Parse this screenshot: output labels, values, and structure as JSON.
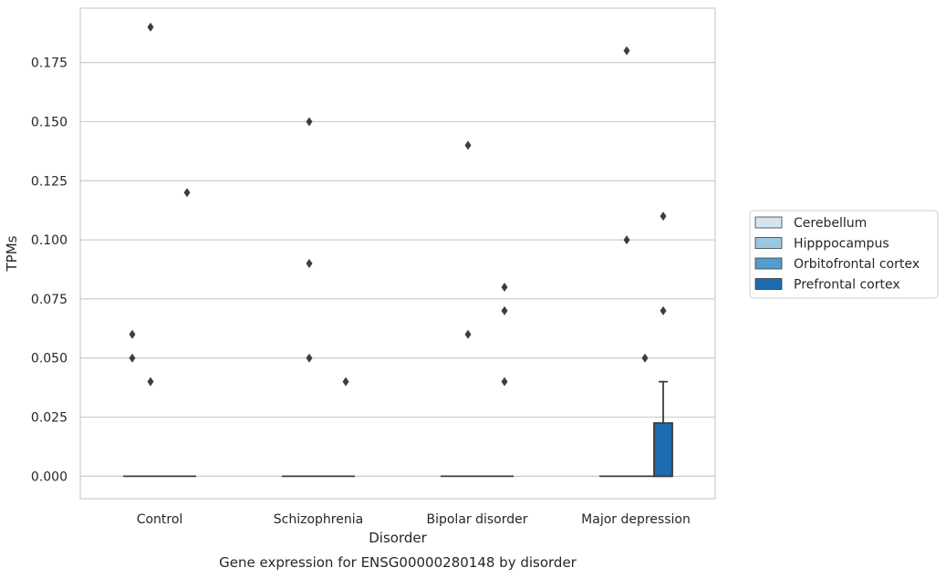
{
  "chart_data": {
    "type": "boxplot",
    "title": "Gene expression for ENSG00000280148 by disorder",
    "xlabel": "Disorder",
    "ylabel": "TPMs",
    "ylim": [
      -0.0095,
      0.198
    ],
    "yticks": [
      0.0,
      0.025,
      0.05,
      0.075,
      0.1,
      0.125,
      0.15,
      0.175
    ],
    "ytick_labels": [
      "0.000",
      "0.025",
      "0.050",
      "0.075",
      "0.100",
      "0.125",
      "0.150",
      "0.175"
    ],
    "grid": "horizontal",
    "legend_placement": "right-center",
    "categories": [
      "Control",
      "Schizophrenia",
      "Bipolar disorder",
      "Major depression"
    ],
    "series": [
      {
        "name": "Cerebellum",
        "color": "#d3e4f3",
        "boxes": [
          {
            "q1": 0,
            "median": 0,
            "q3": 0,
            "whisker_low": 0,
            "whisker_high": 0,
            "outliers": [
              0.06,
              0.05
            ]
          },
          {
            "q1": 0,
            "median": 0,
            "q3": 0,
            "whisker_low": 0,
            "whisker_high": 0,
            "outliers": []
          },
          {
            "q1": 0,
            "median": 0,
            "q3": 0,
            "whisker_low": 0,
            "whisker_high": 0,
            "outliers": []
          },
          {
            "q1": 0,
            "median": 0,
            "q3": 0,
            "whisker_low": 0,
            "whisker_high": 0,
            "outliers": []
          }
        ]
      },
      {
        "name": "Hipppocampus",
        "color": "#9ac8e0",
        "boxes": [
          {
            "q1": 0,
            "median": 0,
            "q3": 0,
            "whisker_low": 0,
            "whisker_high": 0,
            "outliers": [
              0.19,
              0.04
            ]
          },
          {
            "q1": 0,
            "median": 0,
            "q3": 0,
            "whisker_low": 0,
            "whisker_high": 0,
            "outliers": [
              0.15,
              0.09,
              0.05
            ]
          },
          {
            "q1": 0,
            "median": 0,
            "q3": 0,
            "whisker_low": 0,
            "whisker_high": 0,
            "outliers": [
              0.14,
              0.06
            ]
          },
          {
            "q1": 0,
            "median": 0,
            "q3": 0,
            "whisker_low": 0,
            "whisker_high": 0,
            "outliers": [
              0.18,
              0.1
            ]
          }
        ]
      },
      {
        "name": "Orbitofrontal cortex",
        "color": "#529dcc",
        "boxes": [
          {
            "q1": 0,
            "median": 0,
            "q3": 0,
            "whisker_low": 0,
            "whisker_high": 0,
            "outliers": []
          },
          {
            "q1": 0,
            "median": 0,
            "q3": 0,
            "whisker_low": 0,
            "whisker_high": 0,
            "outliers": []
          },
          {
            "q1": 0,
            "median": 0,
            "q3": 0,
            "whisker_low": 0,
            "whisker_high": 0,
            "outliers": []
          },
          {
            "q1": 0,
            "median": 0,
            "q3": 0,
            "whisker_low": 0,
            "whisker_high": 0,
            "outliers": [
              0.05
            ]
          }
        ]
      },
      {
        "name": "Prefrontal cortex",
        "color": "#1c6aaf",
        "boxes": [
          {
            "q1": 0,
            "median": 0,
            "q3": 0,
            "whisker_low": 0,
            "whisker_high": 0,
            "outliers": [
              0.12
            ]
          },
          {
            "q1": 0,
            "median": 0,
            "q3": 0,
            "whisker_low": 0,
            "whisker_high": 0,
            "outliers": [
              0.04
            ]
          },
          {
            "q1": 0,
            "median": 0,
            "q3": 0,
            "whisker_low": 0,
            "whisker_high": 0,
            "outliers": [
              0.08,
              0.07,
              0.04
            ]
          },
          {
            "q1": 0,
            "median": 0,
            "q3": 0.0225,
            "whisker_low": 0,
            "whisker_high": 0.04,
            "outliers": [
              0.11,
              0.07
            ]
          }
        ]
      }
    ]
  }
}
